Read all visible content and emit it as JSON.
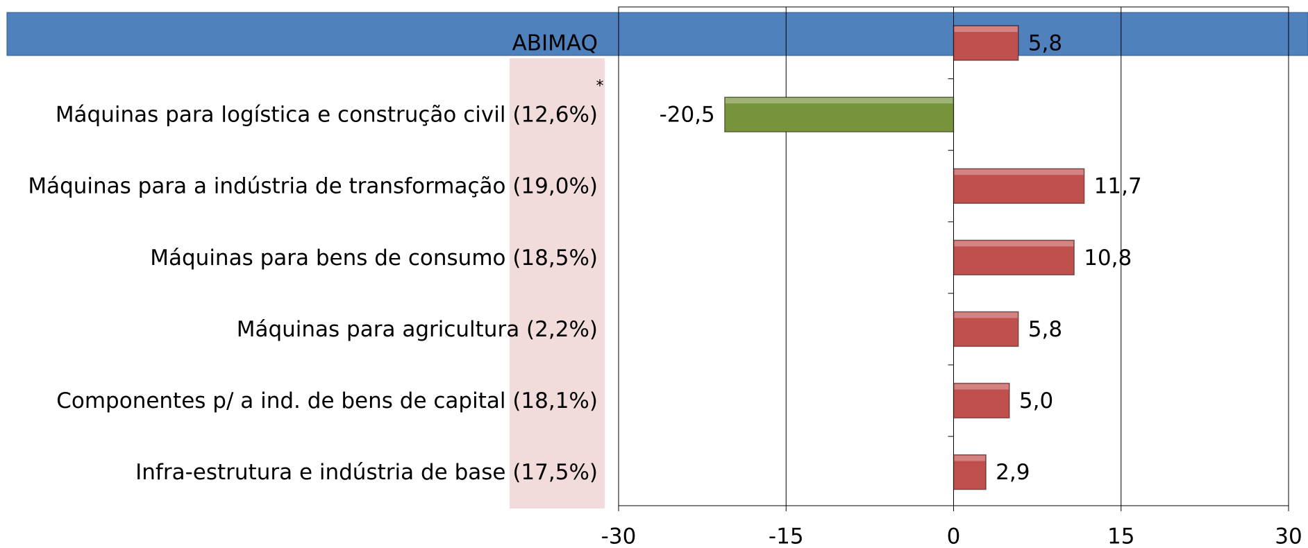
{
  "chart_data": {
    "type": "bar",
    "orientation": "horizontal",
    "categories": [
      "ABIMAQ",
      "Máquinas para logística e construção civil (12,6%)",
      "Máquinas para a indústria de transformação (19,0%)",
      "Máquinas para bens de consumo (18,5%)",
      "Máquinas para agricultura (2,2%)",
      "Componentes p/ a ind. de bens de capital (18,1%)",
      "Infra-estrutura e indústria de base (17,5%)"
    ],
    "values": [
      5.8,
      -20.5,
      11.7,
      10.8,
      5.8,
      5.0,
      2.9
    ],
    "value_labels": [
      "5,8",
      "-20,5",
      "11,7",
      "10,8",
      "5,8",
      "5,0",
      "2,9"
    ],
    "colors": [
      "#c0504d",
      "#77933c",
      "#c0504d",
      "#c0504d",
      "#c0504d",
      "#c0504d",
      "#c0504d"
    ],
    "annotation": "*",
    "xlim": [
      -30,
      30
    ],
    "xticks": [
      -30,
      -15,
      0,
      15,
      30
    ],
    "grid": true
  }
}
